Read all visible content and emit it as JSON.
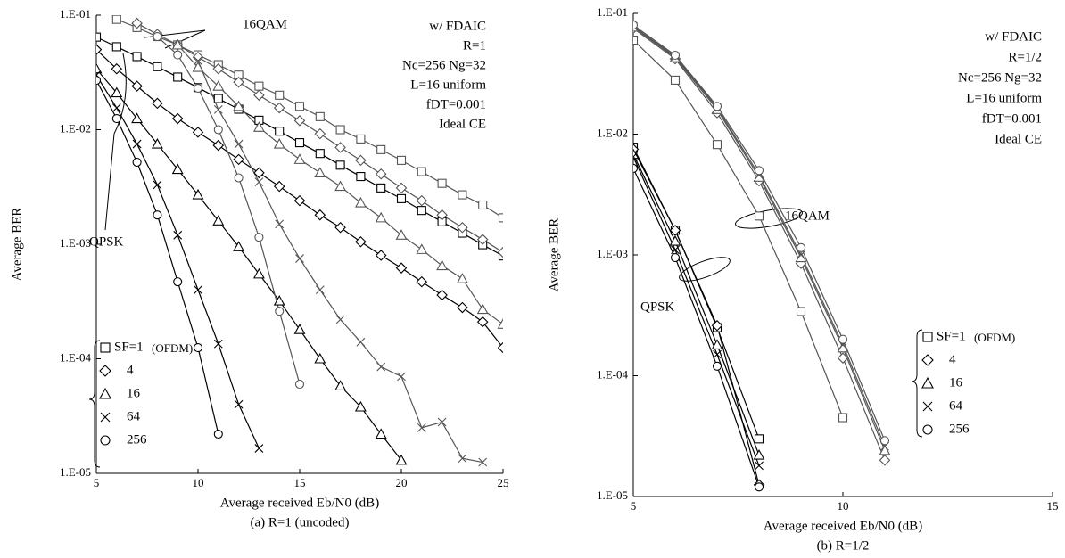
{
  "chart_data": [
    {
      "type": "line",
      "caption": "(a) R=1 (uncoded)",
      "xlabel": "Average received Eb/N0 (dB)",
      "ylabel": "Average BER",
      "log_y": true,
      "ylim": [
        1e-05,
        0.1
      ],
      "yticks": [
        {
          "value": 0.1,
          "label": "1.E-01"
        },
        {
          "value": 0.01,
          "label": "1.E-02"
        },
        {
          "value": 0.001,
          "label": "1.E-03"
        },
        {
          "value": 0.0001,
          "label": "1.E-04"
        },
        {
          "value": 1e-05,
          "label": "1.E-05"
        }
      ],
      "xlim": [
        5,
        25
      ],
      "xticks": [
        5,
        10,
        15,
        20,
        25
      ],
      "notes": [
        "w/ FDAIC",
        "R=1",
        "Nc=256 Ng=32",
        "L=16 uniform",
        "fDT=0.001",
        "Ideal CE"
      ],
      "labels": [
        "16QAM",
        "QPSK"
      ],
      "legend_note": "(OFDM)",
      "x": [
        5,
        6,
        7,
        8,
        9,
        10,
        11,
        12,
        13,
        14,
        15,
        16,
        17,
        18,
        19,
        20,
        21,
        22,
        23,
        24,
        25
      ],
      "series": [
        {
          "name": "SF=1",
          "marker": "square",
          "color": "#000000",
          "values": [
            0.0643,
            0.053,
            0.0435,
            0.0355,
            0.0288,
            0.0233,
            0.0187,
            0.0151,
            0.0121,
            0.0097,
            0.0077,
            0.0062,
            0.0049,
            0.0039,
            0.0031,
            0.0025,
            0.00197,
            0.00157,
            0.00125,
            0.00099,
            0.00079
          ]
        },
        {
          "name": "4",
          "marker": "diamond",
          "color": "#000000",
          "values": [
            0.05,
            0.034,
            0.024,
            0.017,
            0.0125,
            0.0095,
            0.0073,
            0.0055,
            0.0042,
            0.0032,
            0.0024,
            0.0018,
            0.0014,
            0.00105,
            0.0008,
            0.00062,
            0.00047,
            0.00036,
            0.00028,
            0.00021,
            0.000125
          ]
        },
        {
          "name": "16",
          "marker": "triangle",
          "color": "#000000",
          "values": [
            0.034,
            0.021,
            0.0125,
            0.0075,
            0.0045,
            0.0027,
            0.0016,
            0.00095,
            0.00055,
            0.00032,
            0.00018,
            0.0001,
            5.8e-05,
            3.8e-05,
            2.2e-05,
            1.3e-05,
            null,
            null,
            null,
            null,
            null
          ]
        },
        {
          "name": "64",
          "marker": "x",
          "color": "#000000",
          "values": [
            0.03,
            0.0155,
            0.0075,
            0.0033,
            0.0012,
            0.0004,
            0.000135,
            4e-05,
            1.65e-05,
            null,
            null,
            null,
            null,
            null,
            null,
            null,
            null,
            null,
            null,
            null,
            null
          ]
        },
        {
          "name": "256",
          "marker": "circle",
          "color": "#000000",
          "values": [
            0.027,
            0.0125,
            0.0052,
            0.0018,
            0.00047,
            0.000125,
            2.2e-05,
            null,
            null,
            null,
            null,
            null,
            null,
            null,
            null,
            null,
            null,
            null,
            null,
            null,
            null
          ]
        },
        {
          "marker": "square",
          "color": "#555555",
          "values": [
            null,
            0.092,
            0.078,
            0.065,
            0.055,
            0.045,
            0.037,
            0.03,
            0.024,
            0.02,
            0.016,
            0.013,
            0.01,
            0.0083,
            0.0067,
            0.0054,
            0.0043,
            0.0034,
            0.0027,
            0.0022,
            0.0017
          ]
        },
        {
          "marker": "diamond",
          "color": "#555555",
          "values": [
            null,
            null,
            0.085,
            0.068,
            0.055,
            0.043,
            0.034,
            0.026,
            0.02,
            0.0155,
            0.012,
            0.0092,
            0.007,
            0.0054,
            0.0041,
            0.0031,
            0.0024,
            0.0018,
            0.0014,
            0.0011,
            0.00085
          ]
        },
        {
          "marker": "triangle",
          "color": "#555555",
          "values": [
            null,
            null,
            null,
            null,
            0.055,
            0.035,
            0.024,
            0.016,
            0.0105,
            0.0075,
            0.0055,
            0.0042,
            0.0032,
            0.0023,
            0.0017,
            0.0012,
            0.0009,
            0.00065,
            0.0005,
            0.00027,
            0.0002
          ]
        },
        {
          "marker": "x",
          "color": "#555555",
          "values": [
            null,
            null,
            null,
            null,
            null,
            0.04,
            0.015,
            0.0075,
            0.0035,
            0.0015,
            0.00075,
            0.0004,
            0.00022,
            0.00014,
            8.5e-05,
            7e-05,
            2.5e-05,
            2.8e-05,
            1.35e-05,
            1.25e-05,
            null
          ]
        },
        {
          "marker": "circle",
          "color": "#555555",
          "values": [
            null,
            null,
            null,
            0.065,
            0.045,
            0.023,
            0.01,
            0.0038,
            0.00115,
            0.00026,
            6e-05,
            null,
            null,
            null,
            null,
            null,
            null,
            null,
            null,
            null,
            null
          ]
        }
      ]
    },
    {
      "type": "line",
      "caption": "(b) R=1/2",
      "xlabel": "Average received Eb/N0 (dB)",
      "ylabel": "Average BER",
      "log_y": true,
      "ylim": [
        1e-05,
        0.1
      ],
      "yticks": [
        {
          "value": 0.1,
          "label": "1.E-01"
        },
        {
          "value": 0.01,
          "label": "1.E-02"
        },
        {
          "value": 0.001,
          "label": "1.E-03"
        },
        {
          "value": 0.0001,
          "label": "1.E-04"
        },
        {
          "value": 1e-05,
          "label": "1.E-05"
        }
      ],
      "xlim": [
        5,
        15
      ],
      "xticks": [
        5,
        10,
        15
      ],
      "notes": [
        "w/ FDAIC",
        "R=1/2",
        "Nc=256 Ng=32",
        "L=16 uniform",
        "fDT=0.001",
        "Ideal CE"
      ],
      "labels": [
        "16QAM",
        "QPSK"
      ],
      "legend_note": "(OFDM)",
      "x": [
        5,
        6,
        7,
        8,
        9,
        10,
        11,
        12,
        13,
        14,
        15
      ],
      "series": [
        {
          "name": "SF=1",
          "marker": "square",
          "color": "#000000",
          "values": [
            0.0078,
            0.0016,
            0.00025,
            3e-05,
            null,
            null,
            null,
            null,
            null,
            null,
            null
          ]
        },
        {
          "name": "4",
          "marker": "diamond",
          "color": "#000000",
          "values": [
            0.0075,
            0.0016,
            0.00026,
            1.25e-05,
            null,
            null,
            null,
            null,
            null,
            null,
            null
          ]
        },
        {
          "name": "16",
          "marker": "triangle",
          "color": "#000000",
          "values": [
            0.0068,
            0.0013,
            0.00018,
            2.2e-05,
            null,
            null,
            null,
            null,
            null,
            null,
            null
          ]
        },
        {
          "name": "64",
          "marker": "x",
          "color": "#000000",
          "values": [
            0.0065,
            0.0011,
            0.00015,
            1.8e-05,
            null,
            null,
            null,
            null,
            null,
            null,
            null
          ]
        },
        {
          "name": "256",
          "marker": "circle",
          "color": "#000000",
          "values": [
            0.0052,
            0.00095,
            0.00012,
            1.2e-05,
            null,
            null,
            null,
            null,
            null,
            null,
            null
          ]
        },
        {
          "marker": "square",
          "color": "#555555",
          "values": [
            0.06,
            0.028,
            0.0082,
            0.0021,
            0.00034,
            4.5e-05,
            null,
            null,
            null,
            null,
            null
          ]
        },
        {
          "marker": "diamond",
          "color": "#555555",
          "values": [
            0.075,
            0.042,
            0.015,
            0.0041,
            0.00085,
            0.00014,
            2e-05,
            null,
            null,
            null,
            null
          ]
        },
        {
          "marker": "triangle",
          "color": "#555555",
          "values": [
            0.077,
            0.043,
            0.016,
            0.0044,
            0.00095,
            0.00017,
            2.4e-05,
            null,
            null,
            null,
            null
          ]
        },
        {
          "marker": "x",
          "color": "#555555",
          "values": [
            0.078,
            0.044,
            0.0165,
            0.0046,
            0.001,
            0.00018,
            2.6e-05,
            null,
            null,
            null,
            null
          ]
        },
        {
          "marker": "circle",
          "color": "#555555",
          "values": [
            0.08,
            0.045,
            0.017,
            0.005,
            0.00115,
            0.0002,
            2.9e-05,
            null,
            null,
            null,
            null
          ]
        }
      ]
    }
  ]
}
